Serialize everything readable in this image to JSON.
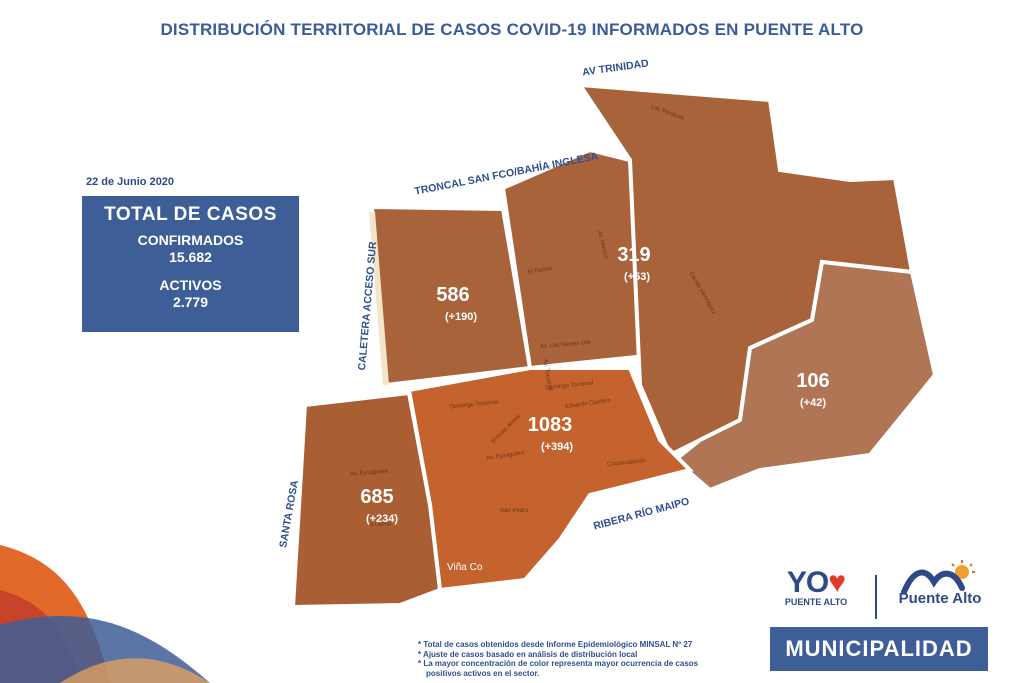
{
  "title": "DISTRIBUCIÓN TERRITORIAL DE CASOS COVID-19 INFORMADOS EN PUENTE ALTO",
  "date": "22 de Junio 2020",
  "totals": {
    "heading": "TOTAL DE CASOS",
    "confirmed_label": "CONFIRMADOS",
    "confirmed_value": "15.682",
    "active_label": "ACTIVOS",
    "active_value": "2.779"
  },
  "roads": {
    "av_trinidad": "AV TRINIDAD",
    "troncal": "TRONCAL SAN FCO/BAHÍA INGLESA",
    "caletera": "CALETERA ACCESO SUR",
    "santa_rosa": "SANTA ROSA",
    "ribera": "RIBERA RÍO MAIPO"
  },
  "zones": [
    {
      "id": "north-west",
      "cases": "586",
      "delta": "(+190)",
      "color": "#a9633b"
    },
    {
      "id": "north-central",
      "cases": "319",
      "delta": "(+53)",
      "color": "#a9633b"
    },
    {
      "id": "east",
      "cases": "106",
      "delta": "(+42)",
      "color": "#b07555"
    },
    {
      "id": "center",
      "cases": "1083",
      "delta": "(+394)",
      "color": "#c4632e"
    },
    {
      "id": "south-west",
      "cases": "685",
      "delta": "(+234)",
      "color": "#a95f33"
    }
  ],
  "streets": {
    "domingo_tocornal_1": "Domingo Tocornal",
    "domingo_tocornal_2": "Domingo Tocornal",
    "eduardo_cordero": "Eduardo Cordero",
    "av_eyzaguirre_1": "Av. Eyzaguirre",
    "av_eyzaguirre_2": "Av. Eyzaguirre",
    "circunvalacion": "Circunvalación",
    "san_pedro": "San Pedro",
    "la_leche": "a Leche",
    "ernesto_alvear": "Ernesto Alvear",
    "av_las_nieves_ote": "Av. Las Nieves Ote",
    "el_penon": "El Peñón",
    "camilo_henriquez": "Camilo Henríquez",
    "las_perdices": "Las Perdices",
    "av_mexico": "Av. Mexico",
    "av_tocornal": "Av. Tocornal",
    "vina_concha": "Viña Co"
  },
  "notes": [
    "* Total de casos obtenidos desde Informe Epidemiológico MINSAL Nº 27",
    "* Ajuste de casos basado en análisis de distribución local",
    "* La mayor concentración de color representa mayor ocurrencia de casos",
    "  positivos activos en el sector."
  ],
  "logos": {
    "yo_text": "YO",
    "heart": "♥",
    "yo_sub": "PUENTE ALTO",
    "pa_name": "Puente Alto",
    "muni": "MUNICIPALIDAD"
  },
  "colors": {
    "brand_blue": "#3e5e97",
    "title_blue": "#3c5c99",
    "heart_red": "#e53a2a",
    "accent_orange": "#e2692a"
  }
}
